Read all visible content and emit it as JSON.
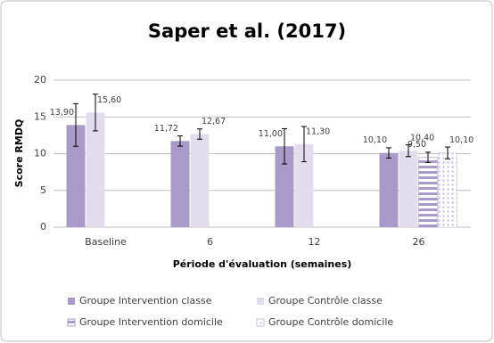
{
  "chart_data": {
    "type": "bar",
    "title": "Saper et al. (2017)",
    "y_label": "Score RMDQ",
    "x_label": "Période d'évaluation (semaines)",
    "categories": [
      "Baseline",
      "6",
      "12",
      "26"
    ],
    "ylim": [
      0,
      20
    ],
    "yticks": [
      0,
      5,
      10,
      15,
      20
    ],
    "grid": true,
    "series": [
      {
        "name": "Groupe Intervention classe",
        "color": "#a99bc8",
        "pattern": "solid",
        "values": [
          13.9,
          11.72,
          11.0,
          10.1
        ],
        "value_labels": [
          "13,90",
          "11,72",
          "11,00",
          "10,10"
        ],
        "errors": [
          2.9,
          0.7,
          2.4,
          0.7
        ]
      },
      {
        "name": "Groupe Contrôle classe",
        "color": "#e3dcec",
        "pattern": "solid",
        "values": [
          15.6,
          12.67,
          11.3,
          10.4
        ],
        "value_labels": [
          "15,60",
          "12,67",
          "11,30",
          "10,40"
        ],
        "errors": [
          2.5,
          0.7,
          2.4,
          0.8
        ]
      },
      {
        "name": "Groupe Intervention domicile",
        "color": "#a99bc8",
        "pattern": "stripes",
        "values": [
          null,
          null,
          null,
          9.5
        ],
        "value_labels": [
          null,
          null,
          null,
          "9,50"
        ],
        "errors": [
          null,
          null,
          null,
          0.7
        ]
      },
      {
        "name": "Groupe Contrôle domicile",
        "color": "#c9bfdc",
        "pattern": "dots",
        "values": [
          null,
          null,
          null,
          10.1
        ],
        "value_labels": [
          null,
          null,
          null,
          "10,10"
        ],
        "errors": [
          null,
          null,
          null,
          0.8
        ]
      }
    ]
  }
}
